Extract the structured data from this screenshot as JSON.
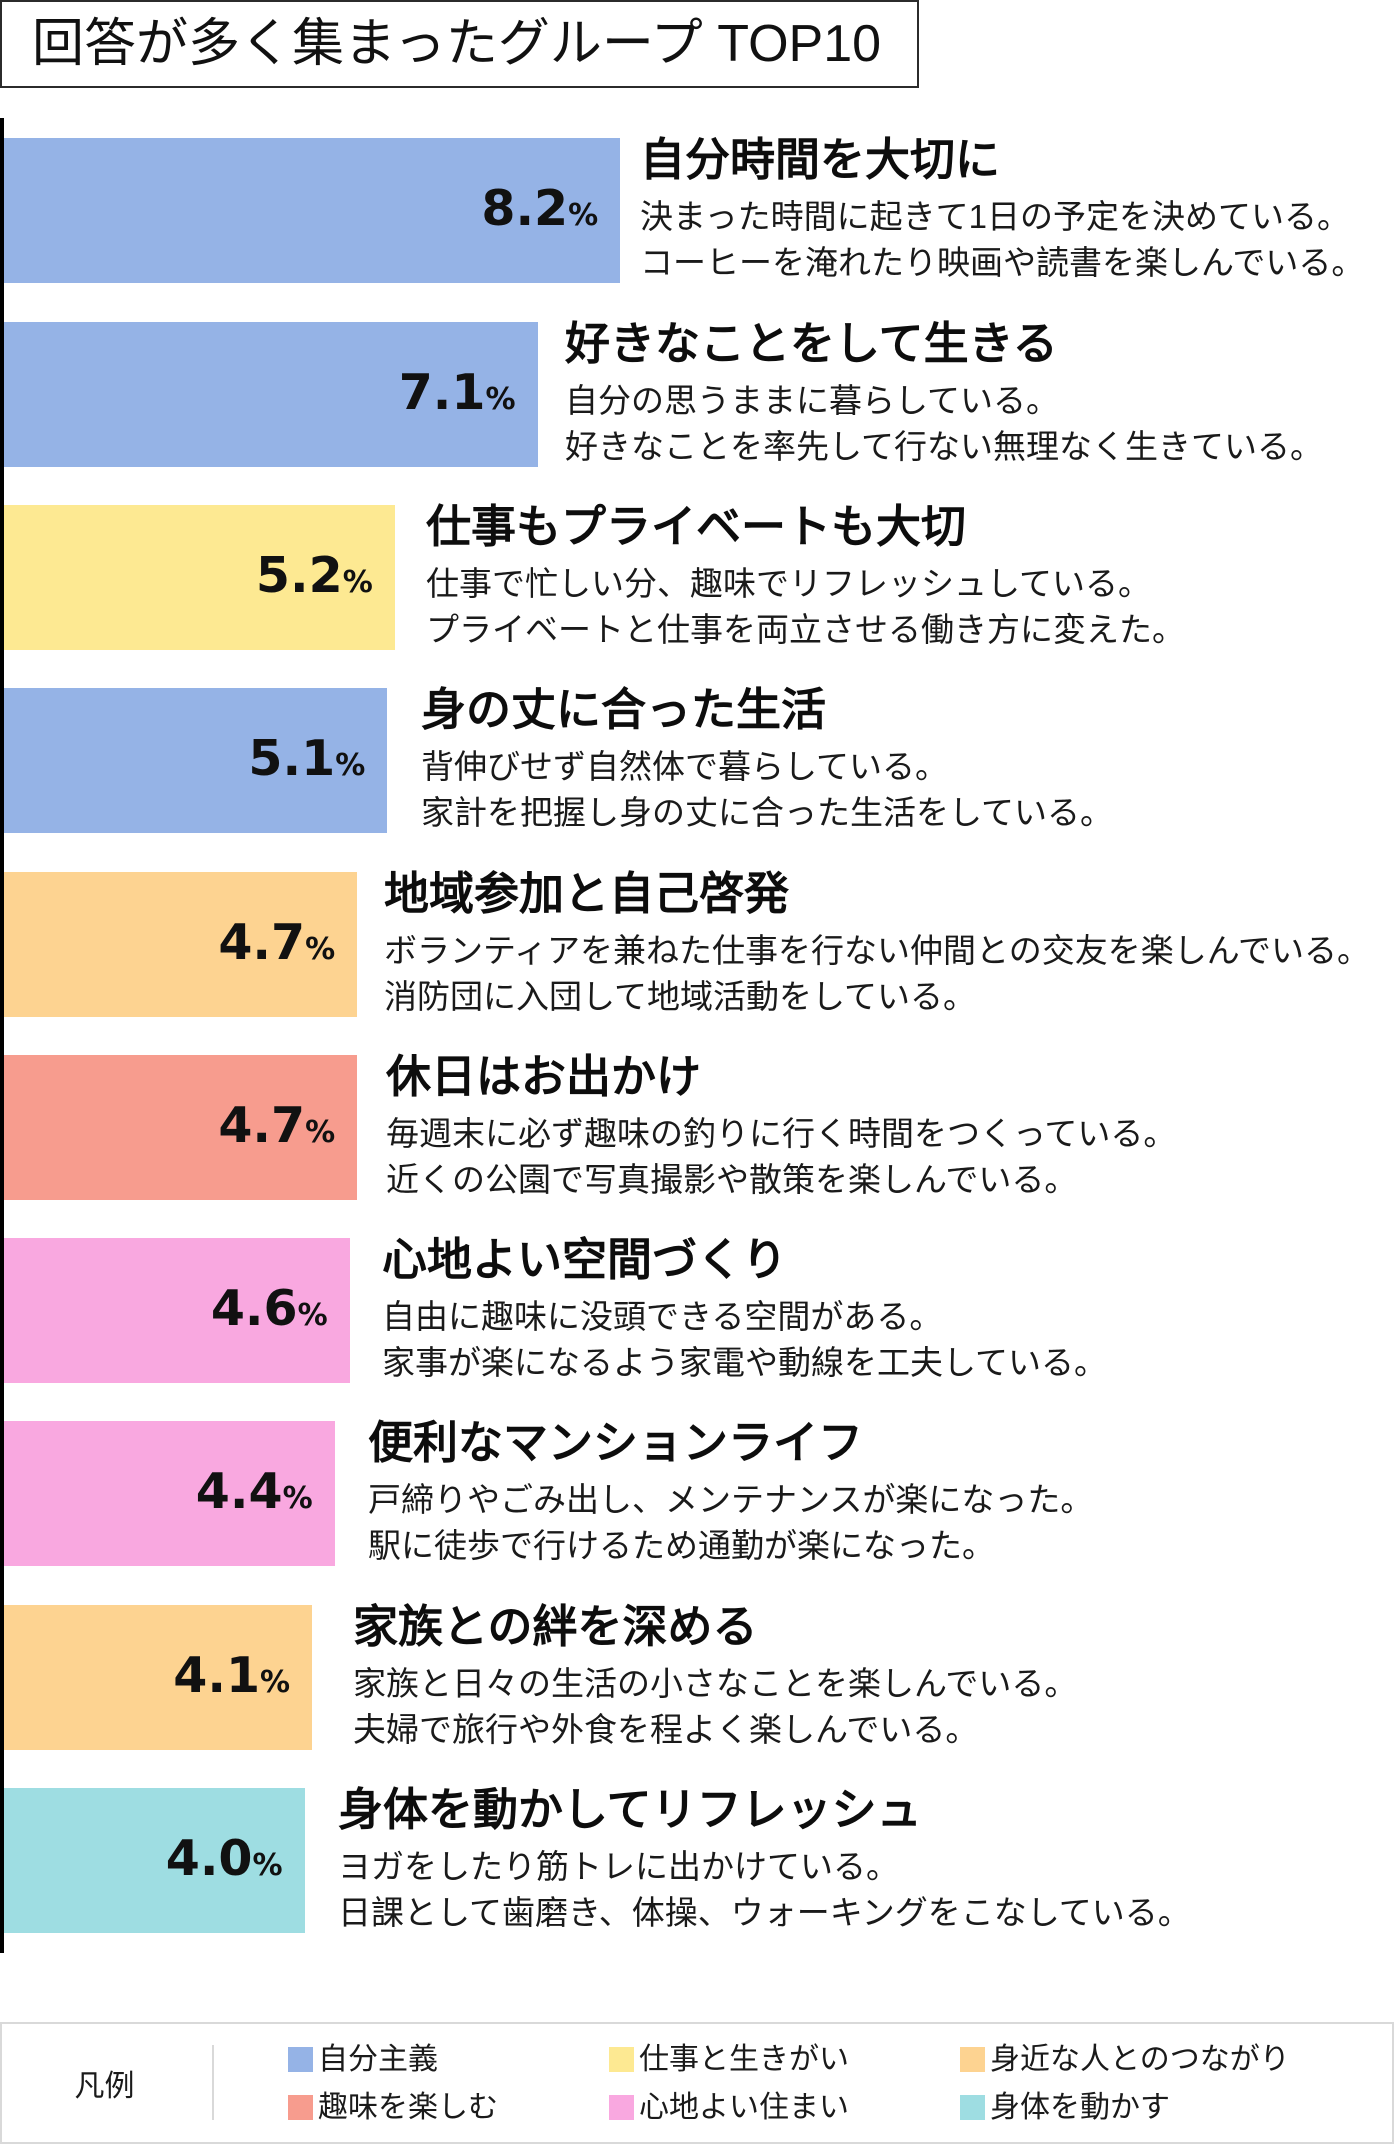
{
  "title": {
    "text": "回答が多く集まったグループ TOP10"
  },
  "groups": [
    {
      "rank": 1,
      "value": 8.2,
      "value_label": "8.2",
      "unit": "%",
      "title": "自分時間を大切に",
      "lines": [
        "決まった時間に起きて1日の予定を決めている。",
        "コーヒーを淹れたり映画や読書を楽しんでいる。"
      ],
      "category": "自分主義",
      "color": "#95b3e6"
    },
    {
      "rank": 2,
      "value": 7.1,
      "value_label": "7.1",
      "unit": "%",
      "title": "好きなことをして生きる",
      "lines": [
        "自分の思うままに暮らしている。",
        "好きなことを率先して行ない無理なく生きている。"
      ],
      "category": "自分主義",
      "color": "#95b3e6"
    },
    {
      "rank": 3,
      "value": 5.2,
      "value_label": "5.2",
      "unit": "%",
      "title": "仕事もプライベートも大切",
      "lines": [
        "仕事で忙しい分、趣味でリフレッシュしている。",
        "プライベートと仕事を両立させる働き方に変えた。"
      ],
      "category": "仕事と生きがい",
      "color": "#fde992"
    },
    {
      "rank": 4,
      "value": 5.1,
      "value_label": "5.1",
      "unit": "%",
      "title": "身の丈に合った生活",
      "lines": [
        "背伸びせず自然体で暮らしている。",
        "家計を把握し身の丈に合った生活をしている。"
      ],
      "category": "自分主義",
      "color": "#95b3e6"
    },
    {
      "rank": 5,
      "value": 4.7,
      "value_label": "4.7",
      "unit": "%",
      "title": "地域参加と自己啓発",
      "lines": [
        "ボランティアを兼ねた仕事を行ない仲間との交友を楽しんでいる。",
        "消防団に入団して地域活動をしている。"
      ],
      "category": "身近な人とのつながり",
      "color": "#fdd391"
    },
    {
      "rank": 6,
      "value": 4.7,
      "value_label": "4.7",
      "unit": "%",
      "title": "休日はお出かけ",
      "lines": [
        "毎週末に必ず趣味の釣りに行く時間をつくっている。",
        "近くの公園で写真撮影や散策を楽しんでいる。"
      ],
      "category": "趣味を楽しむ",
      "color": "#f79c8e"
    },
    {
      "rank": 7,
      "value": 4.6,
      "value_label": "4.6",
      "unit": "%",
      "title": "心地よい空間づくり",
      "lines": [
        "自由に趣味に没頭できる空間がある。",
        "家事が楽になるよう家電や動線を工夫している。"
      ],
      "category": "心地よい住まい",
      "color": "#f9a8e0"
    },
    {
      "rank": 8,
      "value": 4.4,
      "value_label": "4.4",
      "unit": "%",
      "title": "便利なマンションライフ",
      "lines": [
        "戸締りやごみ出し、メンテナンスが楽になった。",
        "駅に徒歩で行けるため通勤が楽になった。"
      ],
      "category": "心地よい住まい",
      "color": "#f9a8e0"
    },
    {
      "rank": 9,
      "value": 4.1,
      "value_label": "4.1",
      "unit": "%",
      "title": "家族との絆を深める",
      "lines": [
        "家族と日々の生活の小さなことを楽しんでいる。",
        "夫婦で旅行や外食を程よく楽しんでいる。"
      ],
      "category": "身近な人とのつながり",
      "color": "#fdd391"
    },
    {
      "rank": 10,
      "value": 4.0,
      "value_label": "4.0",
      "unit": "%",
      "title": "身体を動かしてリフレッシュ",
      "lines": [
        "ヨガをしたり筋トレに出かけている。",
        "日課として歯磨き、体操、ウォーキングをこなしている。"
      ],
      "category": "身体を動かす",
      "color": "#9edde2"
    }
  ],
  "legend": {
    "label": "凡例",
    "items": [
      {
        "label": "自分主義",
        "color": "#95b3e6"
      },
      {
        "label": "仕事と生きがい",
        "color": "#fde992"
      },
      {
        "label": "身近な人とのつながり",
        "color": "#fdd391"
      },
      {
        "label": "趣味を楽しむ",
        "color": "#f79c8e"
      },
      {
        "label": "心地よい住まい",
        "color": "#f9a8e0"
      },
      {
        "label": "身体を動かす",
        "color": "#9edde2"
      }
    ]
  },
  "chart_data": {
    "type": "bar",
    "orientation": "horizontal",
    "title": "回答が多く集まったグループ TOP10",
    "categories": [
      "自分時間を大切に",
      "好きなことをして生きる",
      "仕事もプライベートも大切",
      "身の丈に合った生活",
      "地域参加と自己啓発",
      "休日はお出かけ",
      "心地よい空間づくり",
      "便利なマンションライフ",
      "家族との絆を深める",
      "身体を動かしてリフレッシュ"
    ],
    "values": [
      8.2,
      7.1,
      5.2,
      5.1,
      4.7,
      4.7,
      4.6,
      4.4,
      4.1,
      4.0
    ],
    "value_labels": [
      "8.2%",
      "7.1%",
      "5.2%",
      "5.1%",
      "4.7%",
      "4.7%",
      "4.6%",
      "4.4%",
      "4.1%",
      "4.0%"
    ],
    "unit": "%",
    "bar_groups": [
      "自分主義",
      "自分主義",
      "仕事と生きがい",
      "自分主義",
      "身近な人とのつながり",
      "趣味を楽しむ",
      "心地よい住まい",
      "心地よい住まい",
      "身近な人とのつながり",
      "身体を動かす"
    ],
    "bar_colors": [
      "#95b3e6",
      "#95b3e6",
      "#fde992",
      "#95b3e6",
      "#fdd391",
      "#f79c8e",
      "#f9a8e0",
      "#f9a8e0",
      "#fdd391",
      "#9edde2"
    ],
    "legend": [
      "自分主義",
      "仕事と生きがい",
      "身近な人とのつながり",
      "趣味を楽しむ",
      "心地よい住まい",
      "身体を動かす"
    ],
    "legend_title": "凡例",
    "legend_position": "bottom",
    "xlabel": "",
    "ylabel": "",
    "grid": false
  }
}
